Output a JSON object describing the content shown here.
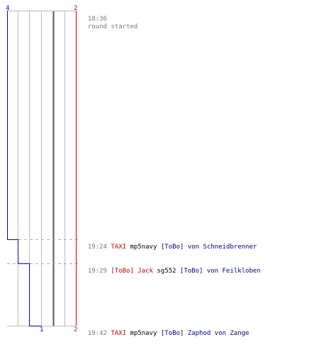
{
  "score": {
    "blue_start": "4",
    "red_start": "2",
    "blue_end": "1",
    "red_end": "2"
  },
  "colors": {
    "blue_team": "#0000cc",
    "red_team": "#cc0000",
    "name_red": "#c00000",
    "name_blue": "#000080",
    "time_text": "#777777",
    "grid": "#bbbbbb",
    "divider": "#555555",
    "dashed_guide": "#aaaaaa"
  },
  "blue_counts": {
    "start": 4,
    "after_event_1": 3,
    "after_event_2": 2,
    "after_event_3": 1
  },
  "log": [
    {
      "time": "18:36",
      "parts": [
        {
          "text": "round started",
          "style": "gray"
        }
      ]
    },
    {
      "time": "19:24",
      "parts": [
        {
          "text": "TAXI",
          "style": "red"
        },
        {
          "text": " mp5navy ",
          "style": "black"
        },
        {
          "text": "[ToBo] von Schneidbrenner",
          "style": "blue"
        }
      ]
    },
    {
      "time": "19:29",
      "parts": [
        {
          "text": "[ToBo] Jack",
          "style": "red"
        },
        {
          "text": " sg552 ",
          "style": "black"
        },
        {
          "text": "[ToBo] von Feilkloben",
          "style": "blue"
        }
      ]
    },
    {
      "time": "19:42",
      "parts": [
        {
          "text": "TAXI",
          "style": "red"
        },
        {
          "text": " mp5navy ",
          "style": "black"
        },
        {
          "text": "[ToBo] Zaphod von Zange",
          "style": "blue"
        }
      ]
    }
  ]
}
